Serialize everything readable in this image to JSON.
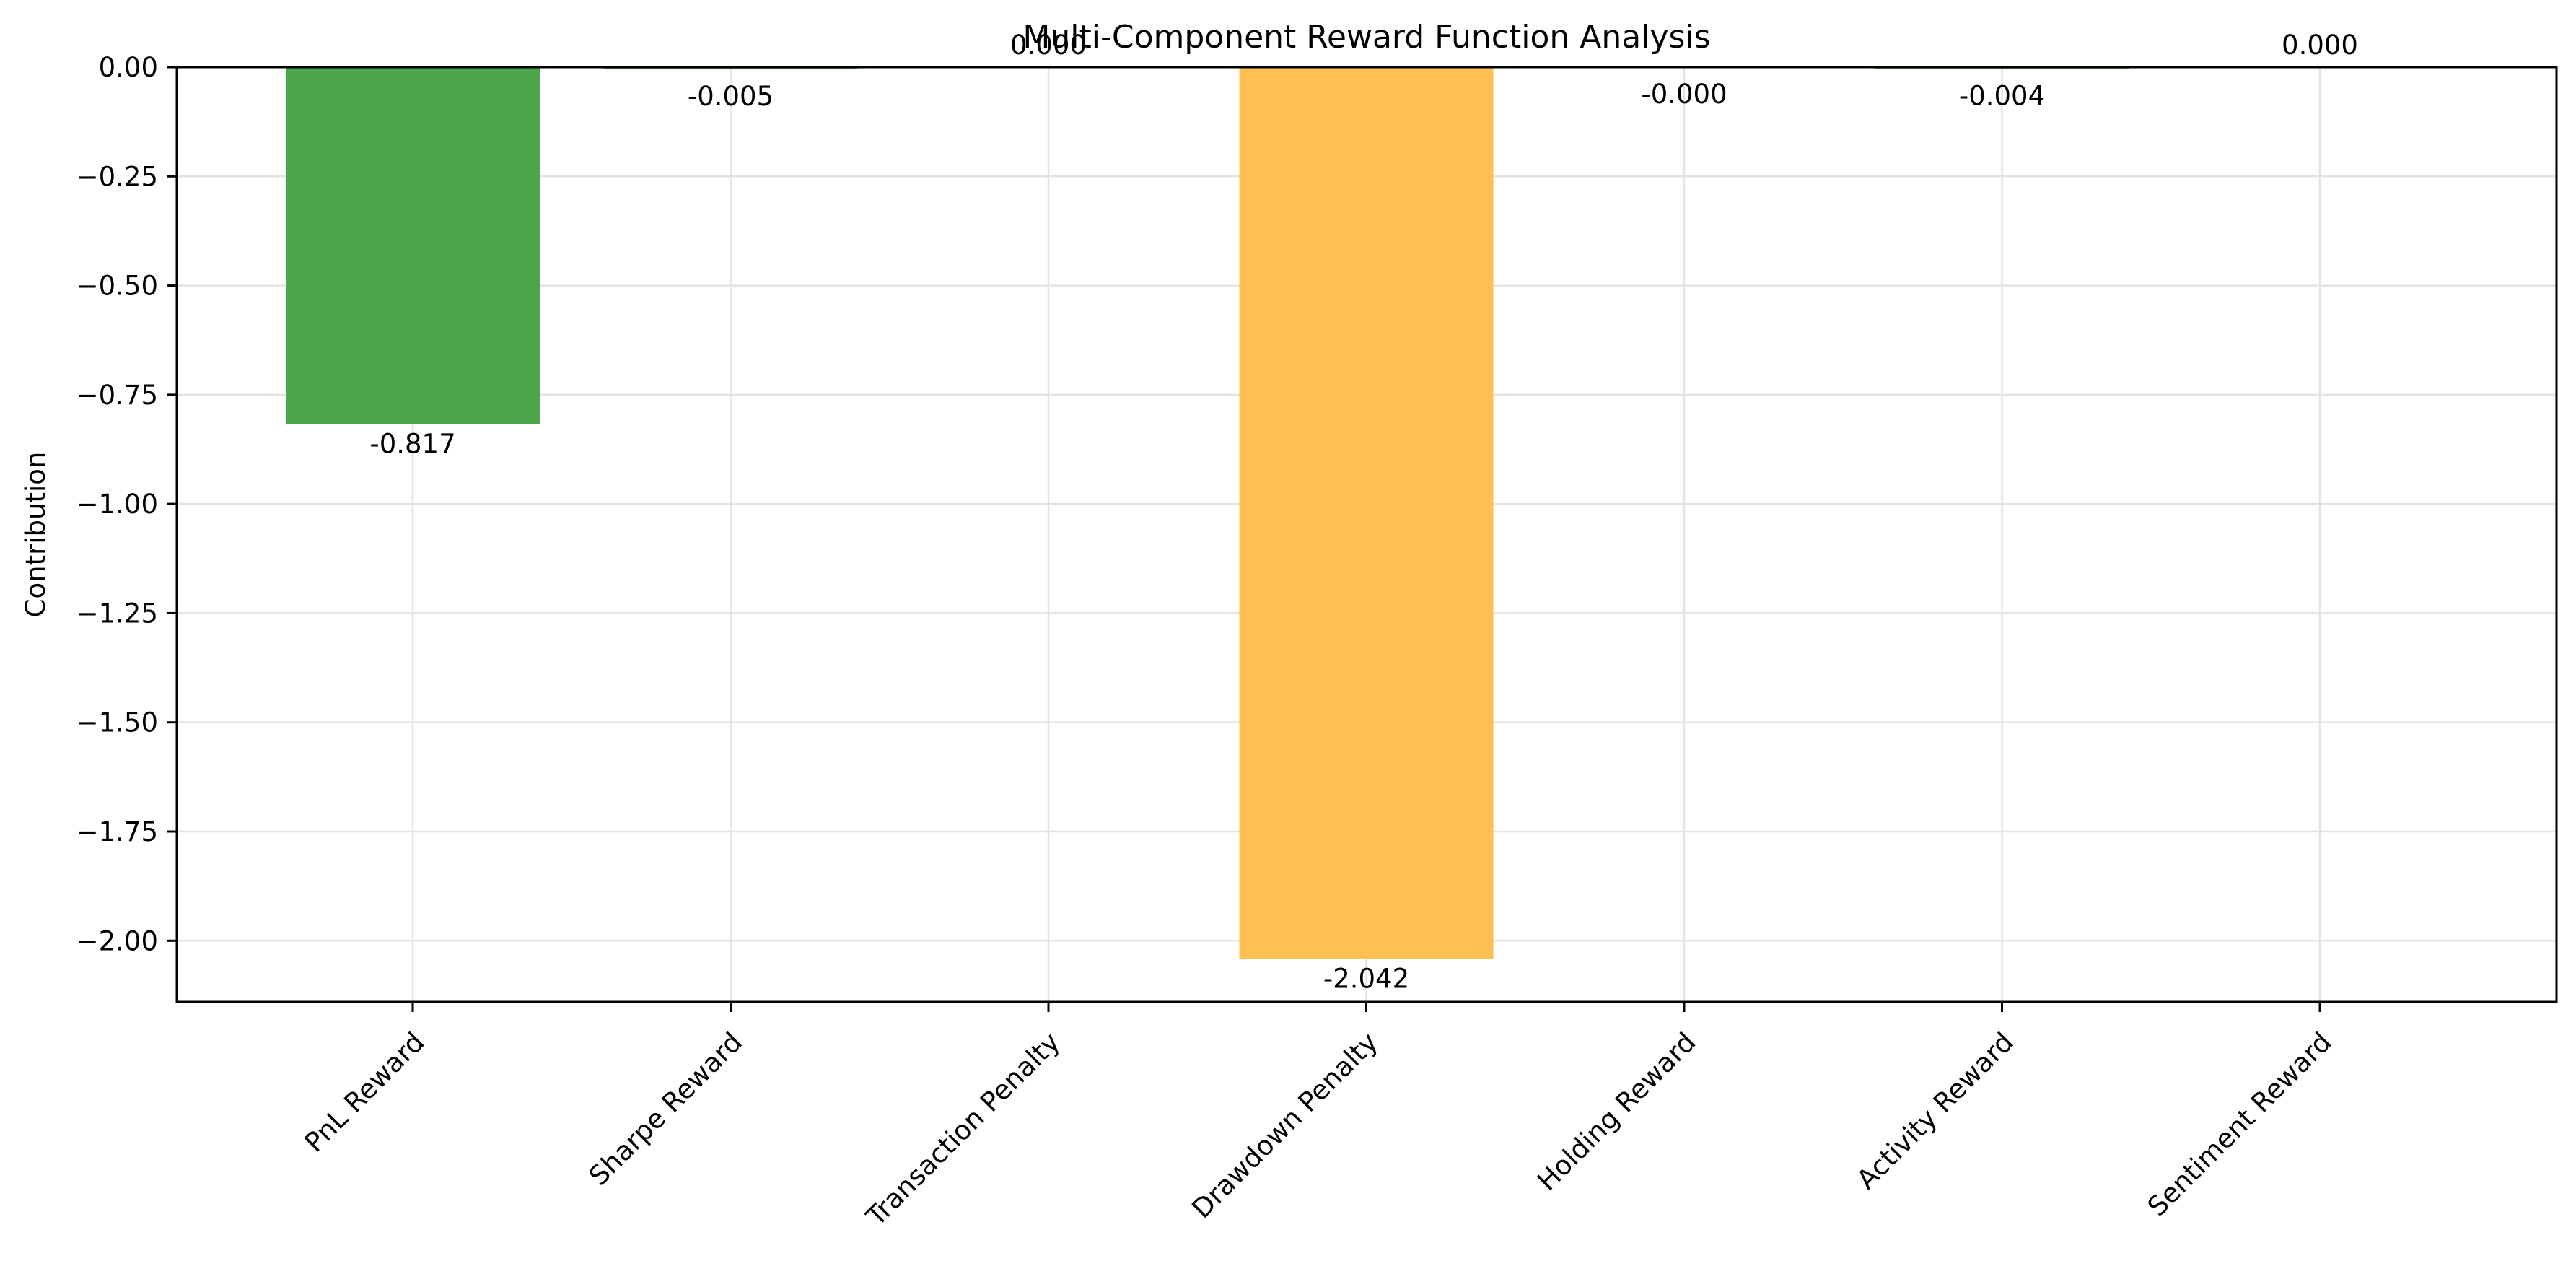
{
  "chart_data": {
    "type": "bar",
    "title": "Multi-Component Reward Function Analysis",
    "xlabel": "",
    "ylabel": "Contribution",
    "categories": [
      "PnL Reward",
      "Sharpe Reward",
      "Transaction Penalty",
      "Drawdown Penalty",
      "Holding Reward",
      "Activity Reward",
      "Sentiment Reward"
    ],
    "values": [
      -0.817,
      -0.005,
      0.0,
      -2.042,
      -0.0,
      -0.004,
      0.0
    ],
    "value_labels": [
      "-0.817",
      "-0.005",
      "0.000",
      "-2.042",
      "-0.000",
      "-0.004",
      "0.000"
    ],
    "colors": [
      "#4ca64c",
      "#4ca64c",
      "#4ca64c",
      "#ffbf52",
      "#4ca64c",
      "#4ca64c",
      "#4ca64c"
    ],
    "ylim": [
      -2.14,
      0.0
    ],
    "yticks": [
      0.0,
      -0.25,
      -0.5,
      -0.75,
      -1.0,
      -1.25,
      -1.5,
      -1.75,
      -2.0
    ],
    "ytick_labels": [
      "0.00",
      "−0.25",
      "−0.50",
      "−0.75",
      "−1.00",
      "−1.25",
      "−1.50",
      "−1.75",
      "−2.00"
    ],
    "grid": true,
    "legend": "none"
  }
}
